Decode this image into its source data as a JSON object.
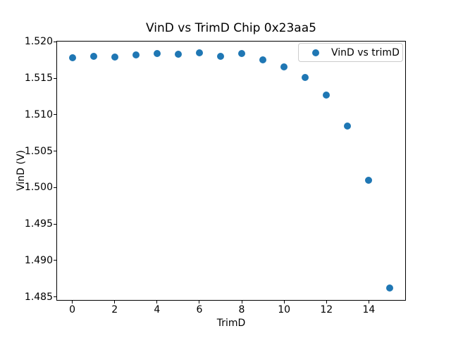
{
  "chart_data": {
    "type": "scatter",
    "title": "VinD vs TrimD Chip 0x23aa5",
    "xlabel": "TrimD",
    "ylabel": "VinD (V)",
    "xlim": [
      -0.75,
      15.75
    ],
    "ylim": [
      1.48447,
      1.52014
    ],
    "xticks": [
      0,
      2,
      4,
      6,
      8,
      10,
      12,
      14
    ],
    "yticks": [
      1.485,
      1.49,
      1.495,
      1.5,
      1.505,
      1.51,
      1.515,
      1.52
    ],
    "ytick_labels": [
      "1.485",
      "1.490",
      "1.495",
      "1.500",
      "1.505",
      "1.510",
      "1.515",
      "1.520"
    ],
    "grid": false,
    "legend": {
      "position": "upper right",
      "label": "VinD vs trimD"
    },
    "series": [
      {
        "name": "VinD vs trimD",
        "color": "#1f77b4",
        "marker": "circle",
        "x": [
          0,
          1,
          2,
          3,
          4,
          5,
          6,
          7,
          8,
          9,
          10,
          11,
          12,
          13,
          14,
          15
        ],
        "y": [
          1.5178,
          1.518,
          1.5179,
          1.5182,
          1.5184,
          1.5183,
          1.5185,
          1.518,
          1.5184,
          1.5175,
          1.5166,
          1.5151,
          1.5127,
          1.5084,
          1.501,
          1.4862
        ]
      }
    ]
  }
}
